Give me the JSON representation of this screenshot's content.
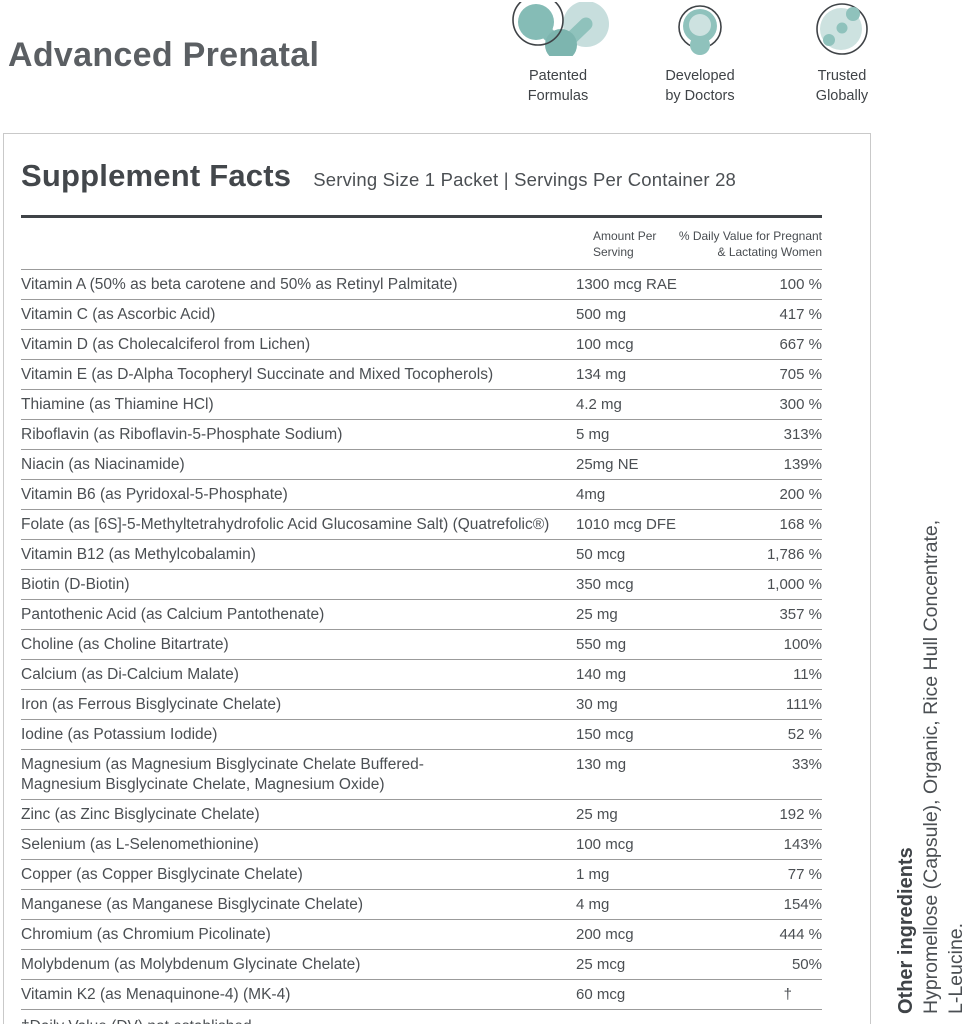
{
  "header": {
    "title": "Advanced Prenatal",
    "badges": [
      {
        "icon": "molecule-icon",
        "label": "Patented\nFormulas"
      },
      {
        "icon": "stethoscope-icon",
        "label": "Developed\nby Doctors"
      },
      {
        "icon": "globe-icon",
        "label": "Trusted\nGlobally"
      }
    ]
  },
  "panel": {
    "title": "Supplement Facts",
    "serving_info": "Serving Size 1 Packet | Servings Per Container 28",
    "columns": {
      "amount": "Amount Per\nServing",
      "dv": "% Daily Value for Pregnant\n& Lactating Women"
    },
    "rows": [
      {
        "name": "Vitamin A (50% as beta carotene and 50% as Retinyl Palmitate)",
        "amount": "1300 mcg RAE",
        "dv": "100 %"
      },
      {
        "name": "Vitamin C (as Ascorbic Acid)",
        "amount": "500 mg",
        "dv": "417 %"
      },
      {
        "name": "Vitamin D (as Cholecalciferol from Lichen)",
        "amount": "100 mcg",
        "dv": "667 %"
      },
      {
        "name": "Vitamin E (as D-Alpha Tocopheryl Succinate and Mixed Tocopherols)",
        "amount": "134 mg",
        "dv": "705 %"
      },
      {
        "name": "Thiamine (as Thiamine HCl)",
        "amount": "4.2 mg",
        "dv": "300 %"
      },
      {
        "name": "Riboflavin (as Riboflavin-5-Phosphate Sodium)",
        "amount": "5 mg",
        "dv": "313%"
      },
      {
        "name": "Niacin (as Niacinamide)",
        "amount": "25mg NE",
        "dv": "139%"
      },
      {
        "name": "Vitamin B6 (as Pyridoxal-5-Phosphate)",
        "amount": "4mg",
        "dv": "200 %"
      },
      {
        "name": "Folate (as [6S]-5-Methyltetrahydrofolic Acid Glucosamine Salt) (Quatrefolic®)",
        "amount": "1010 mcg DFE",
        "dv": "168 %"
      },
      {
        "name": "Vitamin B12 (as Methylcobalamin)",
        "amount": "50 mcg",
        "dv": "1,786 %"
      },
      {
        "name": "Biotin (D-Biotin)",
        "amount": "350 mcg",
        "dv": "1,000 %"
      },
      {
        "name": "Pantothenic Acid (as Calcium Pantothenate)",
        "amount": "25 mg",
        "dv": "357 %"
      },
      {
        "name": "Choline (as Choline Bitartrate)",
        "amount": "550 mg",
        "dv": "100%"
      },
      {
        "name": "Calcium (as Di-Calcium Malate)",
        "amount": "140 mg",
        "dv": "11%"
      },
      {
        "name": "Iron (as Ferrous Bisglycinate Chelate)",
        "amount": "30 mg",
        "dv": "111%"
      },
      {
        "name": "Iodine (as Potassium Iodide)",
        "amount": "150 mcg",
        "dv": "52 %"
      },
      {
        "name": "Magnesium (as Magnesium Bisglycinate Chelate Buffered-\nMagnesium Bisglycinate Chelate, Magnesium Oxide)",
        "amount": "130 mg",
        "dv": "33%"
      },
      {
        "name": "Zinc (as Zinc Bisglycinate Chelate)",
        "amount": "25 mg",
        "dv": "192 %"
      },
      {
        "name": "Selenium (as L-Selenomethionine)",
        "amount": "100 mcg",
        "dv": "143%"
      },
      {
        "name": "Copper (as Copper Bisglycinate Chelate)",
        "amount": "1 mg",
        "dv": "77 %"
      },
      {
        "name": "Manganese (as Manganese Bisglycinate Chelate)",
        "amount": "4 mg",
        "dv": "154%"
      },
      {
        "name": "Chromium (as Chromium Picolinate)",
        "amount": "200 mcg",
        "dv": "444 %"
      },
      {
        "name": "Molybdenum (as Molybdenum Glycinate Chelate)",
        "amount": "25 mcg",
        "dv": "50%"
      },
      {
        "name": "Vitamin K2 (as Menaquinone-4) (MK-4)",
        "amount": "60 mcg",
        "dv": "†"
      }
    ],
    "footnote": "†Daily Value (DV) not established."
  },
  "side_note": {
    "heading": "Other ingredients",
    "text": "Hypromellose (Capsule), Organic, Rice Hull Concentrate,\nL-Leucine."
  },
  "colors": {
    "teal_light": "#c7dedd",
    "teal_medium": "#8fc2bc",
    "teal_dark": "#7db5af",
    "text_dark": "#43474b",
    "rule_dark": "#3f4347",
    "rule_thin": "#9b9b9b",
    "panel_border": "#c9c9c9"
  }
}
